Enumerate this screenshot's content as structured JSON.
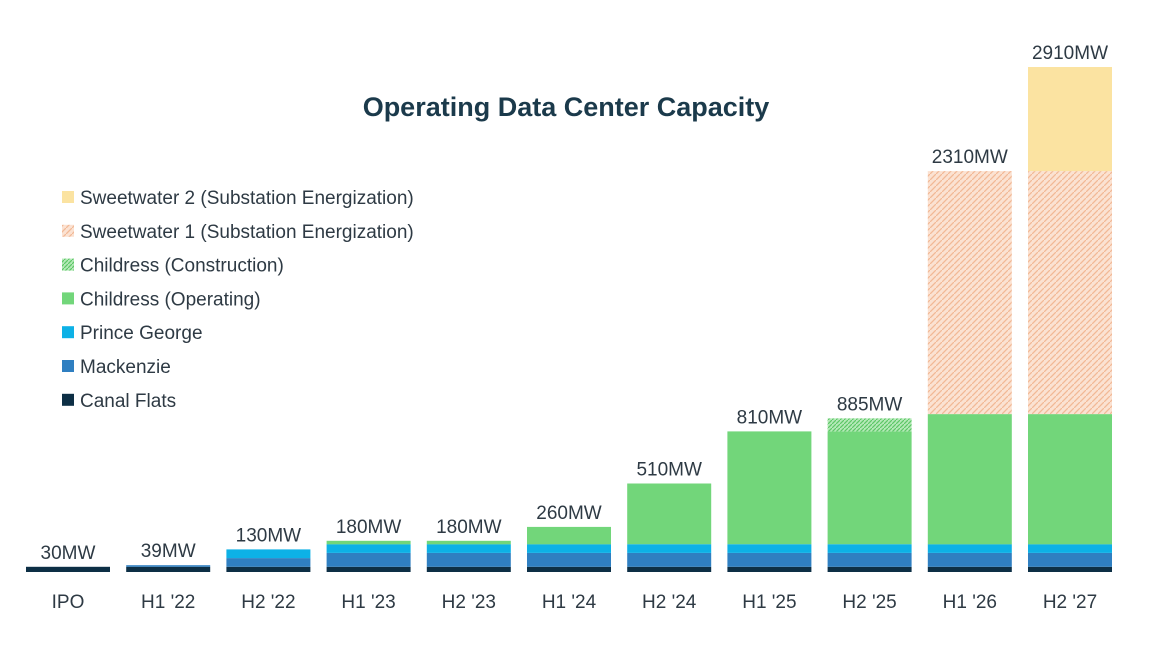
{
  "chart_data": {
    "type": "bar",
    "stacked": true,
    "title": "Operating Data Center Capacity",
    "xlabel": "",
    "ylabel": "",
    "ylim": [
      0,
      2910
    ],
    "grid": false,
    "legend_position": "top-left",
    "categories": [
      "IPO",
      "H1 '22",
      "H2 '22",
      "H1 '23",
      "H2 '23",
      "H1 '24",
      "H2 '24",
      "H1 '25",
      "H2 '25",
      "H1 '26",
      "H2 '27"
    ],
    "totals": [
      30,
      39,
      130,
      180,
      180,
      260,
      510,
      810,
      885,
      2310,
      2910
    ],
    "total_labels": [
      "30MW",
      "39MW",
      "130MW",
      "180MW",
      "180MW",
      "260MW",
      "510MW",
      "810MW",
      "885MW",
      "2310MW",
      "2910MW"
    ],
    "series": [
      {
        "name": "Canal Flats",
        "color": "#0d2f45",
        "pattern": "solid",
        "values": [
          30,
          30,
          30,
          30,
          30,
          30,
          30,
          30,
          30,
          30,
          30
        ]
      },
      {
        "name": "Mackenzie",
        "color": "#2f7fc1",
        "pattern": "solid",
        "values": [
          0,
          9,
          50,
          80,
          80,
          80,
          80,
          80,
          80,
          80,
          80
        ]
      },
      {
        "name": "Prince George",
        "color": "#0db1e6",
        "pattern": "solid",
        "values": [
          0,
          0,
          50,
          50,
          50,
          50,
          50,
          50,
          50,
          50,
          50
        ]
      },
      {
        "name": "Childress (Operating)",
        "color": "#72d67a",
        "pattern": "solid",
        "values": [
          0,
          0,
          0,
          20,
          20,
          100,
          350,
          650,
          650,
          750,
          750
        ]
      },
      {
        "name": "Childress (Construction)",
        "color": "#72d67a",
        "pattern": "hatch",
        "values": [
          0,
          0,
          0,
          0,
          0,
          0,
          0,
          0,
          75,
          0,
          0
        ]
      },
      {
        "name": "Sweetwater 1 (Substation Energization)",
        "color": "#f6cbb0",
        "pattern": "hatch",
        "values": [
          0,
          0,
          0,
          0,
          0,
          0,
          0,
          0,
          0,
          1400,
          1400
        ]
      },
      {
        "name": "Sweetwater 2 (Substation Energization)",
        "color": "#fbe3a1",
        "pattern": "solid",
        "values": [
          0,
          0,
          0,
          0,
          0,
          0,
          0,
          0,
          0,
          0,
          600
        ]
      }
    ],
    "legend_order": [
      "Sweetwater 2 (Substation Energization)",
      "Sweetwater 1 (Substation Energization)",
      "Childress (Construction)",
      "Childress (Operating)",
      "Prince George",
      "Mackenzie",
      "Canal Flats"
    ]
  }
}
